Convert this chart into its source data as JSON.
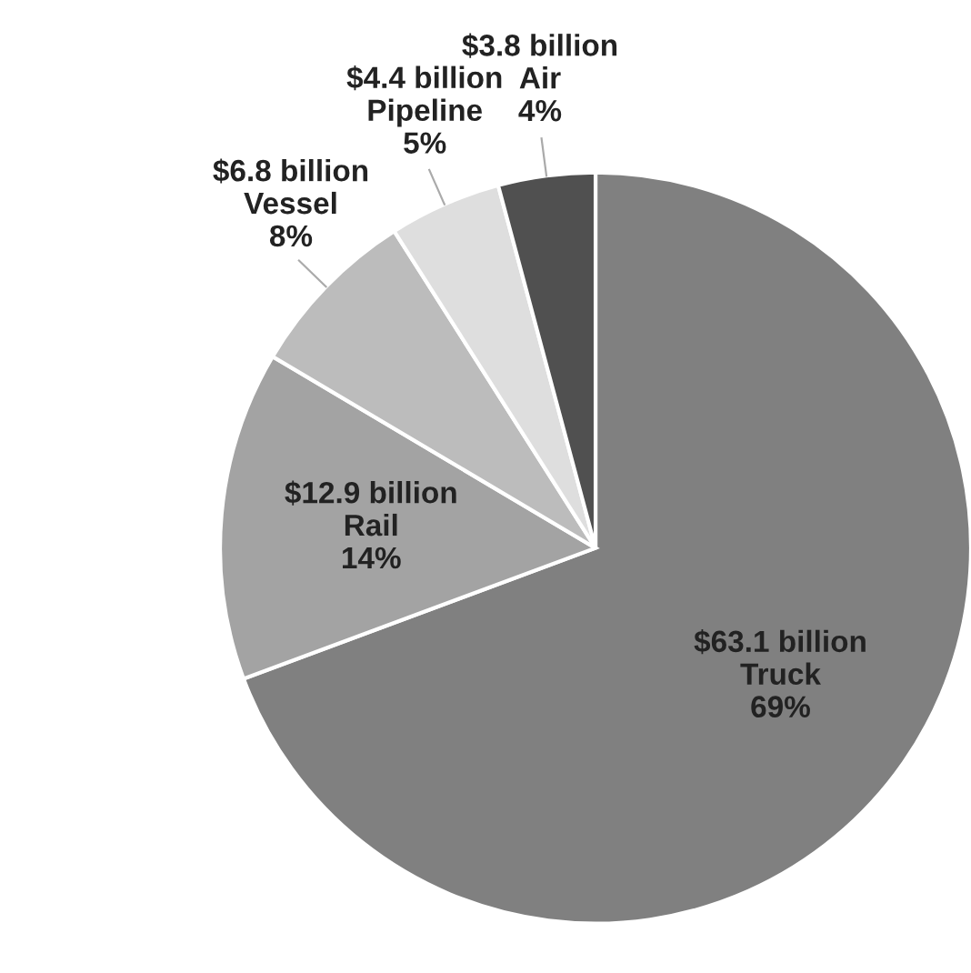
{
  "chart_data": {
    "type": "pie",
    "categories": [
      "Truck",
      "Rail",
      "Vessel",
      "Pipeline",
      "Air"
    ],
    "values": [
      63.1,
      12.9,
      6.8,
      4.4,
      3.8
    ],
    "colors": [
      "#808080",
      "#a3a3a3",
      "#bcbcbc",
      "#dedede",
      "#505050"
    ],
    "value_labels": [
      "$63.1 billion",
      "$12.9 billion",
      "$6.8 billion",
      "$4.4 billion",
      "$3.8 billion"
    ],
    "annotations": [
      {
        "text": "69%",
        "x": "Truck"
      },
      {
        "text": "14%",
        "x": "Rail"
      },
      {
        "text": "8%",
        "x": "Vessel"
      },
      {
        "text": "5%",
        "x": "Pipeline"
      },
      {
        "text": "4%",
        "x": "Air"
      }
    ],
    "legend": false
  }
}
